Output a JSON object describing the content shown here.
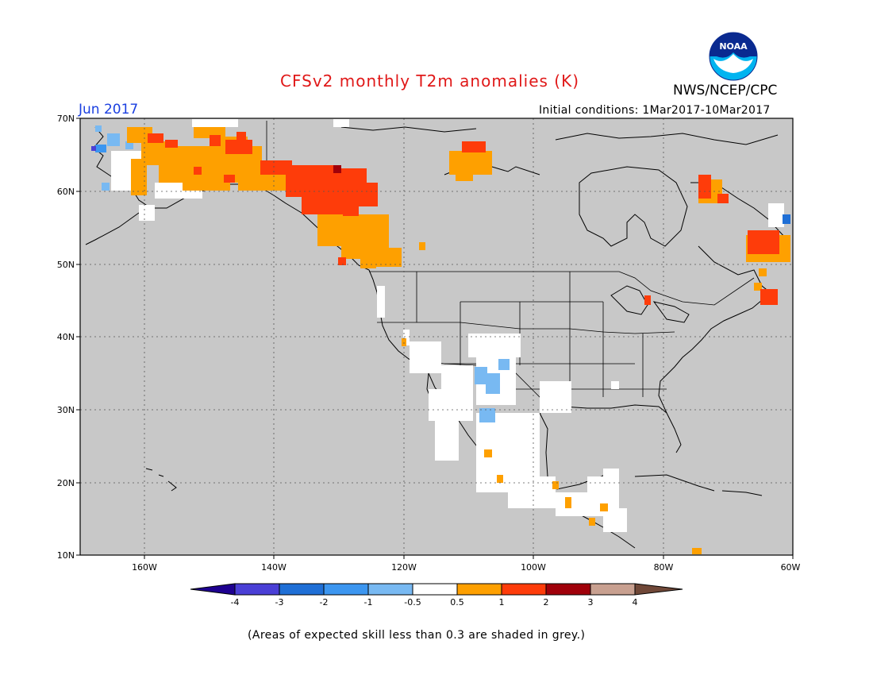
{
  "header": {
    "title": "CFSv2 monthly T2m anomalies (K)",
    "agency": "NWS/NCEP/CPC",
    "logo_text": "NOAA",
    "target_month": "Jun 2017",
    "initial_conditions": "Initial conditions: 1Mar2017-10Mar2017"
  },
  "map": {
    "lat_labels": [
      "70N",
      "60N",
      "50N",
      "40N",
      "30N",
      "20N",
      "10N"
    ],
    "lon_labels": [
      "160W",
      "140W",
      "120W",
      "100W",
      "80W",
      "60W"
    ],
    "background_color": "#c8c8c8",
    "land_outline_color": "#000000",
    "gridline_style": "dotted"
  },
  "legend": {
    "tick_labels": [
      "-4",
      "-3",
      "-2",
      "-1",
      "-0.5",
      "0.5",
      "1",
      "2",
      "3",
      "4"
    ],
    "colors": [
      "#1e0090",
      "#4a3fd6",
      "#1f6fd6",
      "#3c96f0",
      "#78b9f2",
      "#ffffff",
      "#fea000",
      "#fe3c0a",
      "#a0000a",
      "#c8a090",
      "#704838"
    ]
  },
  "footnote": "(Areas of expected skill less than 0.3 are shaded in grey.)"
}
